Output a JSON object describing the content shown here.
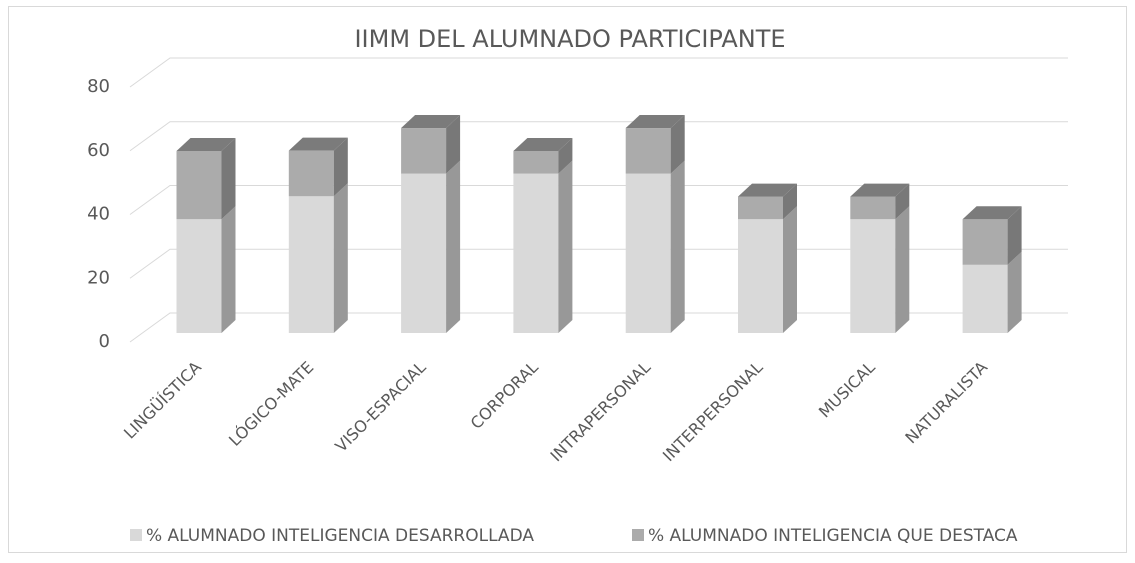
{
  "chart_data": {
    "type": "bar3d_stacked",
    "title": "IIMM DEL ALUMNADO PARTICIPANTE",
    "categories": [
      "LINGÜÍSTICA",
      "LÓGICO-MATE",
      "VISO-ESPACIAL",
      "CORPORAL",
      "INTRAPERSONAL",
      "INTERPERSONAL",
      "MUSICAL",
      "NATURALISTA"
    ],
    "series": [
      {
        "name": "% ALUMNADO INTELIGENCIA DESARROLLADA",
        "color": "#d9d9d9",
        "values": [
          35.7,
          42.9,
          50,
          50,
          50,
          35.7,
          35.7,
          21.4
        ]
      },
      {
        "name": "% ALUMNADO INTELIGENCIA QUE DESTACA",
        "color": "#ababab",
        "values": [
          21.4,
          14.3,
          14.3,
          7.1,
          14.3,
          7.1,
          7.1,
          14.3
        ]
      }
    ],
    "ylim": [
      0,
      80
    ],
    "yticks": [
      0,
      20,
      40,
      60,
      80
    ],
    "grid": true,
    "legend": "bottom"
  }
}
